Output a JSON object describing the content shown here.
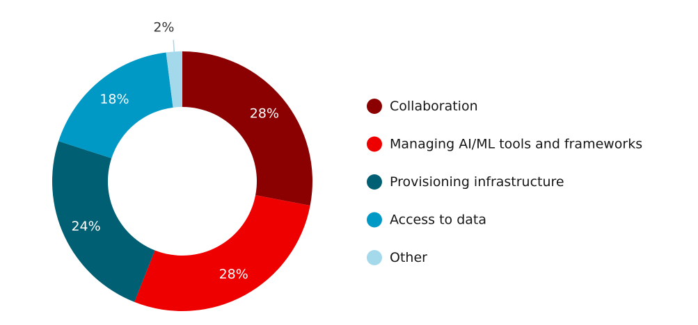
{
  "chart_data": {
    "type": "donut",
    "title": "",
    "categories": [
      "Collaboration",
      "Managing AI/ML tools and frameworks",
      "Provisioning infrastructure",
      "Access to data",
      "Other"
    ],
    "values": [
      28,
      28,
      24,
      18,
      2
    ],
    "value_labels": [
      "28%",
      "28%",
      "24%",
      "18%",
      "2%"
    ],
    "colors": [
      "#8b0000",
      "#ee0000",
      "#005f73",
      "#0099c6",
      "#a3d9ea"
    ],
    "label_colors": [
      "#ffffff",
      "#ffffff",
      "#ffffff",
      "#ffffff",
      "#333333"
    ],
    "legend_position": "right"
  }
}
